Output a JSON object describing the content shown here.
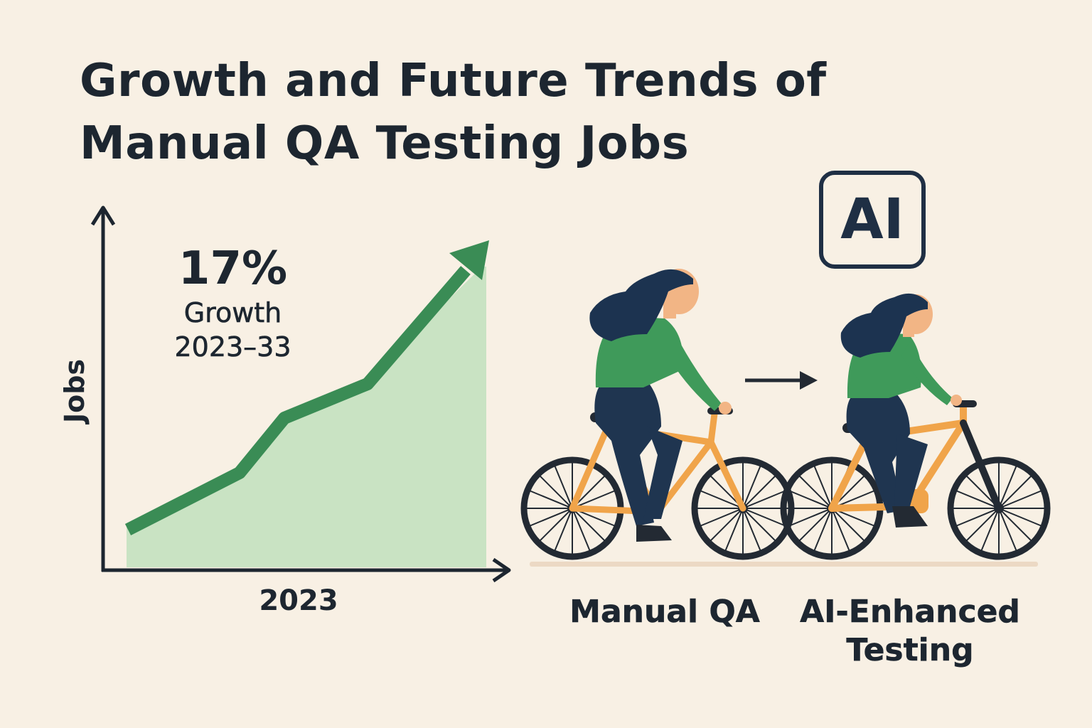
{
  "title_lines": [
    "Growth and Future Trends of",
    "Manual QA Testing Jobs"
  ],
  "stat": {
    "value": "17%",
    "label": "Growth",
    "period": "2023–33"
  },
  "chart": {
    "y_axis_label": "Jobs",
    "x_axis_label": "2023"
  },
  "ai_badge": "AI",
  "captions": {
    "manual": "Manual QA",
    "ai_enhanced_line1": "AI-Enhanced",
    "ai_enhanced_line2": "Testing"
  },
  "colors": {
    "background": "#f8f0e4",
    "growth_line": "#3a8c55",
    "growth_area": "#c9e3c3",
    "bike_frame": "#f0a44a",
    "shirt": "#3f9a5a",
    "pants": "#1f3550",
    "hair": "#1c3350",
    "text": "#1d2630"
  },
  "icons": [
    "growth-arrow-icon",
    "right-arrow-icon",
    "cyclist-manual-icon",
    "cyclist-ai-icon"
  ]
}
